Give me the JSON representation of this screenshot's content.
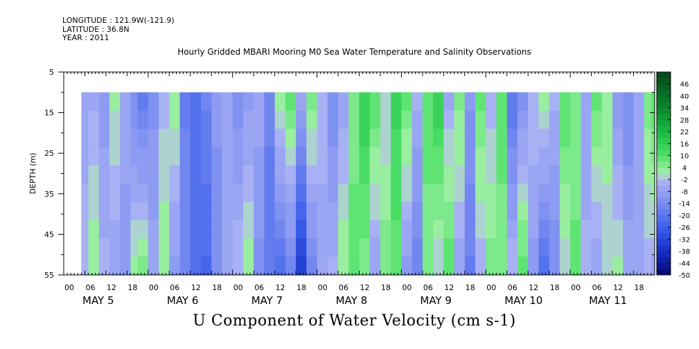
{
  "header": {
    "longitude": "LONGITUDE : 121.9W(-121.9)",
    "latitude": "LATITUDE : 36.8N",
    "year": "YEAR : 2011"
  },
  "chart_data": {
    "type": "heatmap",
    "title": "Hourly Gridded MBARI Mooring M0 Sea Water Temperature and Salinity Observations",
    "bottom_title": "U Component of Water Velocity (cm s-1)",
    "ylabel": "DEPTH (m)",
    "y_ticks": [
      "5",
      "15",
      "25",
      "35",
      "45",
      "55"
    ],
    "ylim": [
      5,
      55
    ],
    "y_inverted": true,
    "x_hour_ticks": [
      "00",
      "06",
      "12",
      "18",
      "00",
      "06",
      "12",
      "18",
      "00",
      "06",
      "12",
      "18",
      "00",
      "06",
      "12",
      "18",
      "00",
      "06",
      "12",
      "18",
      "00",
      "06",
      "12",
      "18",
      "00",
      "06",
      "12",
      "18"
    ],
    "x_day_labels": [
      "MAY  5",
      "MAY  6",
      "MAY  7",
      "MAY  8",
      "MAY  9",
      "MAY 10",
      "MAY 11"
    ],
    "xlim_hours": [
      0,
      168
    ],
    "data_start_hour": 5,
    "data_depth_range": [
      10,
      55
    ],
    "colorbar": {
      "labels": [
        "46",
        "40",
        "34",
        "28",
        "22",
        "16",
        "10",
        "4",
        "-2",
        "-8",
        "-14",
        "-20",
        "-26",
        "-32",
        "-38",
        "-44",
        "-50"
      ],
      "range": [
        -50,
        52
      ],
      "step": 3
    },
    "column_values": [
      {
        "hour": 5,
        "surface": -8,
        "bottom": -2
      },
      {
        "hour": 7,
        "surface": -6,
        "bottom": 4
      },
      {
        "hour": 10,
        "surface": -10,
        "bottom": -4
      },
      {
        "hour": 13,
        "surface": 2,
        "bottom": -8
      },
      {
        "hour": 16,
        "surface": -6,
        "bottom": -10
      },
      {
        "hour": 19,
        "surface": -14,
        "bottom": 2
      },
      {
        "hour": 21,
        "surface": -20,
        "bottom": 6
      },
      {
        "hour": 24,
        "surface": -12,
        "bottom": -6
      },
      {
        "hour": 27,
        "surface": -4,
        "bottom": 4
      },
      {
        "hour": 30,
        "surface": 4,
        "bottom": -10
      },
      {
        "hour": 33,
        "surface": -18,
        "bottom": -14
      },
      {
        "hour": 36,
        "surface": -22,
        "bottom": -20
      },
      {
        "hour": 39,
        "surface": -16,
        "bottom": -24
      },
      {
        "hour": 42,
        "surface": -10,
        "bottom": -14
      },
      {
        "hour": 45,
        "surface": -8,
        "bottom": -8
      },
      {
        "hour": 48,
        "surface": -14,
        "bottom": -2
      },
      {
        "hour": 51,
        "surface": -10,
        "bottom": 4
      },
      {
        "hour": 54,
        "surface": -6,
        "bottom": -12
      },
      {
        "hour": 57,
        "surface": -16,
        "bottom": -20
      },
      {
        "hour": 60,
        "surface": 4,
        "bottom": -22
      },
      {
        "hour": 63,
        "surface": 10,
        "bottom": -18
      },
      {
        "hour": 66,
        "surface": -4,
        "bottom": -34
      },
      {
        "hour": 69,
        "surface": 6,
        "bottom": -16
      },
      {
        "hour": 72,
        "surface": -2,
        "bottom": -8
      },
      {
        "hour": 75,
        "surface": -14,
        "bottom": -4
      },
      {
        "hour": 78,
        "surface": -8,
        "bottom": 4
      },
      {
        "hour": 81,
        "surface": 4,
        "bottom": 10
      },
      {
        "hour": 84,
        "surface": 16,
        "bottom": 4
      },
      {
        "hour": 87,
        "surface": 10,
        "bottom": -8
      },
      {
        "hour": 90,
        "surface": -2,
        "bottom": 6
      },
      {
        "hour": 93,
        "surface": 14,
        "bottom": 8
      },
      {
        "hour": 96,
        "surface": 8,
        "bottom": -10
      },
      {
        "hour": 99,
        "surface": -4,
        "bottom": -16
      },
      {
        "hour": 102,
        "surface": 10,
        "bottom": 4
      },
      {
        "hour": 105,
        "surface": 16,
        "bottom": -2
      },
      {
        "hour": 108,
        "surface": -6,
        "bottom": 10
      },
      {
        "hour": 111,
        "surface": 6,
        "bottom": -8
      },
      {
        "hour": 114,
        "surface": -10,
        "bottom": -18
      },
      {
        "hour": 117,
        "surface": 8,
        "bottom": -4
      },
      {
        "hour": 120,
        "surface": -4,
        "bottom": 6
      },
      {
        "hour": 123,
        "surface": 10,
        "bottom": 4
      },
      {
        "hour": 126,
        "surface": -20,
        "bottom": -2
      },
      {
        "hour": 129,
        "surface": -14,
        "bottom": 10
      },
      {
        "hour": 132,
        "surface": -2,
        "bottom": -10
      },
      {
        "hour": 135,
        "surface": 4,
        "bottom": -22
      },
      {
        "hour": 138,
        "surface": -4,
        "bottom": -14
      },
      {
        "hour": 141,
        "surface": 10,
        "bottom": -2
      },
      {
        "hour": 144,
        "surface": 4,
        "bottom": 8
      },
      {
        "hour": 147,
        "surface": -8,
        "bottom": -4
      },
      {
        "hour": 150,
        "surface": 8,
        "bottom": -8
      },
      {
        "hour": 153,
        "surface": 4,
        "bottom": -2
      },
      {
        "hour": 156,
        "surface": -10,
        "bottom": 2
      },
      {
        "hour": 159,
        "surface": -14,
        "bottom": -6
      },
      {
        "hour": 162,
        "surface": -6,
        "bottom": -8
      },
      {
        "hour": 165,
        "surface": 6,
        "bottom": -4
      },
      {
        "hour": 167,
        "surface": 10,
        "bottom": -6
      }
    ]
  }
}
